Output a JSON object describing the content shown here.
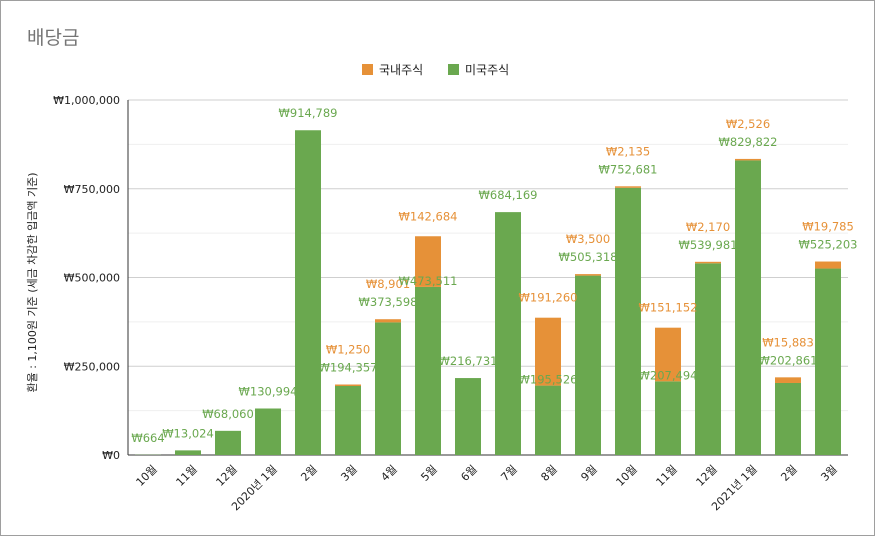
{
  "chart_data": {
    "type": "bar",
    "stacked": true,
    "title": "배당금",
    "ylabel": "환율 : 1,100원 기준 (세금 차감한 입금액 기준)",
    "xlabel": "",
    "ylim": [
      0,
      1000000
    ],
    "y_ticks": [
      "₩0",
      "₩250,000",
      "₩500,000",
      "₩750,000",
      "₩1,000,000"
    ],
    "y_tick_values": [
      0,
      250000,
      500000,
      750000,
      1000000
    ],
    "grid": true,
    "legend_position": "top",
    "categories": [
      "10월",
      "11월",
      "12월",
      "2020년 1월",
      "2월",
      "3월",
      "4월",
      "5월",
      "6월",
      "7월",
      "8월",
      "9월",
      "10월",
      "11월",
      "12월",
      "2021년 1월",
      "2월",
      "3월"
    ],
    "series": [
      {
        "name": "미국주식",
        "color": "#6aa84f",
        "values": [
          664,
          13024,
          68060,
          130994,
          914789,
          194357,
          373598,
          473511,
          216731,
          684169,
          195526,
          505318,
          752681,
          207494,
          539981,
          829822,
          202861,
          525203
        ],
        "labels": [
          "₩664",
          "₩13,024",
          "₩68,060",
          "₩130,994",
          "₩914,789",
          "₩194,357",
          "₩373,598",
          "₩473,511",
          "₩216,731",
          "₩684,169",
          "₩195,526",
          "₩505,318",
          "₩752,681",
          "₩207,494",
          "₩539,981",
          "₩829,822",
          "₩202,861",
          "₩525,203"
        ]
      },
      {
        "name": "국내주식",
        "color": "#e69138",
        "values": [
          0,
          0,
          0,
          0,
          0,
          1250,
          8901,
          142684,
          0,
          0,
          191260,
          3500,
          2135,
          151152,
          2170,
          2526,
          15883,
          19785
        ],
        "labels": [
          "",
          "",
          "",
          "",
          "",
          "₩1,250",
          "₩8,901",
          "₩142,684",
          "",
          "",
          "₩191,260",
          "₩3,500",
          "₩2,135",
          "₩151,152",
          "₩2,170",
          "₩2,526",
          "₩15,883",
          "₩19,785"
        ]
      }
    ],
    "legend": [
      {
        "name": "국내주식",
        "color": "#e69138"
      },
      {
        "name": "미국주식",
        "color": "#6aa84f"
      }
    ]
  }
}
